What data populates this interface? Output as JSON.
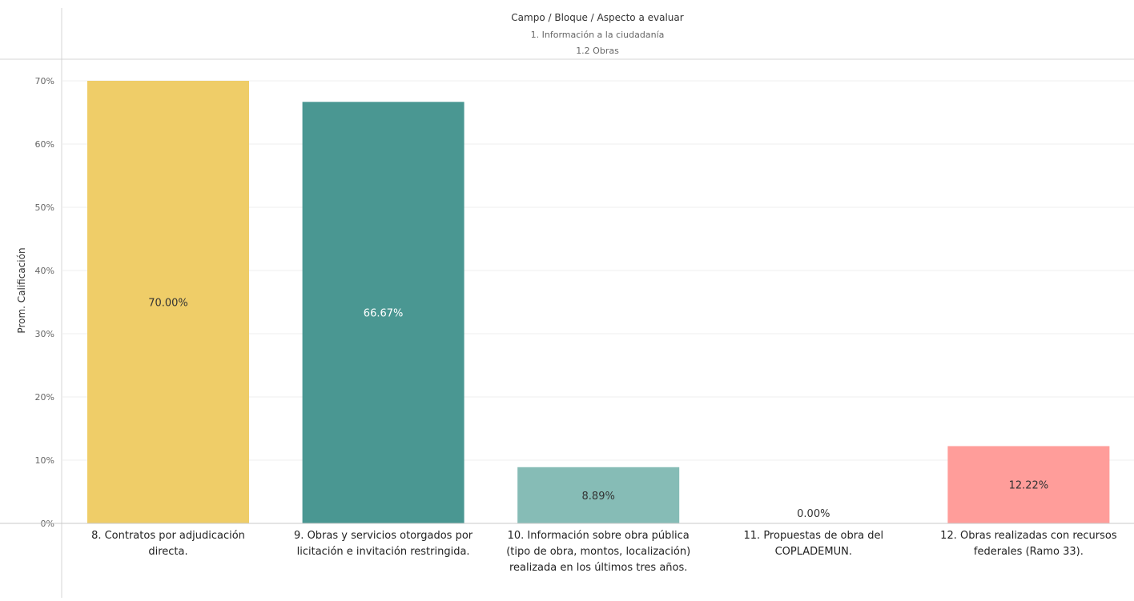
{
  "chart_data": {
    "type": "bar",
    "header": {
      "title": "Campo / Bloque / Aspecto a evaluar",
      "field": "1. Información a la ciudadanía",
      "block": "1.2 Obras"
    },
    "ylabel": "Prom. Calificación",
    "ylim": [
      0,
      70
    ],
    "yticks": [
      "0%",
      "10%",
      "20%",
      "30%",
      "40%",
      "50%",
      "60%",
      "70%"
    ],
    "grid": true,
    "categories": [
      [
        "8. Contratos por adjudicación",
        "directa."
      ],
      [
        "9. Obras y servicios otorgados por",
        "licitación e invitación restringida."
      ],
      [
        "10. Información sobre obra pública",
        "(tipo de obra, montos, localización)",
        "realizada en los últimos tres años."
      ],
      [
        "11. Propuestas de obra del",
        "COPLADEMUN."
      ],
      [
        "12. Obras realizadas con recursos",
        "federales (Ramo 33)."
      ]
    ],
    "values": [
      70.0,
      66.67,
      8.89,
      0.0,
      12.22
    ],
    "labels": [
      "70.00%",
      "66.67%",
      "8.89%",
      "0.00%",
      "12.22%"
    ],
    "colors": [
      "#EFCD68",
      "#4A9792",
      "#86BCB6",
      "#86BCB6",
      "#FF9D9A"
    ],
    "label_colors": [
      "#333333",
      "#ffffff",
      "#333333",
      "#333333",
      "#333333"
    ]
  }
}
